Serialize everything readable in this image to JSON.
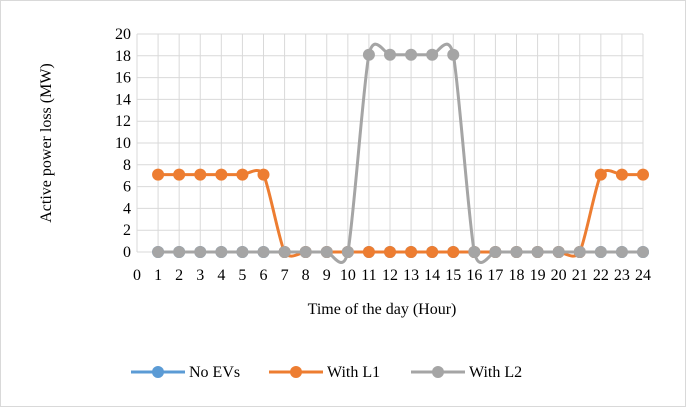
{
  "chart_data": {
    "type": "line",
    "title": "",
    "xlabel": "Time of the day (Hour)",
    "ylabel": "Active power loss (MW)",
    "x_ticks": [
      "0",
      "1",
      "2",
      "3",
      "4",
      "5",
      "6",
      "7",
      "8",
      "9",
      "10",
      "11",
      "12",
      "13",
      "14",
      "15",
      "16",
      "17",
      "18",
      "19",
      "20",
      "21",
      "22",
      "23",
      "24"
    ],
    "x": [
      1,
      2,
      3,
      4,
      5,
      6,
      7,
      8,
      9,
      10,
      11,
      12,
      13,
      14,
      15,
      16,
      17,
      18,
      19,
      20,
      21,
      22,
      23,
      24
    ],
    "xlim": [
      0,
      24
    ],
    "ylim": [
      0,
      20
    ],
    "y_ticks": [
      "0",
      "2",
      "4",
      "6",
      "8",
      "10",
      "12",
      "14",
      "16",
      "18",
      "20"
    ],
    "y_tick_values": [
      0,
      2,
      4,
      6,
      8,
      10,
      12,
      14,
      16,
      18,
      20
    ],
    "grid": true,
    "legend_position": "bottom",
    "series": [
      {
        "name": "No EVs",
        "color": "#5b9bd5",
        "values": [
          0,
          0,
          0,
          0,
          0,
          0,
          0,
          0,
          0,
          0,
          0,
          0,
          0,
          0,
          0,
          0,
          0,
          0,
          0,
          0,
          0,
          0,
          0,
          0
        ]
      },
      {
        "name": "With L1",
        "color": "#ed7d31",
        "values": [
          7.1,
          7.1,
          7.1,
          7.1,
          7.1,
          7.1,
          0,
          0,
          0,
          0,
          0,
          0,
          0,
          0,
          0,
          0,
          0,
          0,
          0,
          0,
          0,
          7.1,
          7.1,
          7.1
        ]
      },
      {
        "name": "With L2",
        "color": "#a5a5a5",
        "values": [
          0,
          0,
          0,
          0,
          0,
          0,
          0,
          0,
          0,
          0,
          18.1,
          18.1,
          18.1,
          18.1,
          18.1,
          0,
          0,
          0,
          0,
          0,
          0,
          0,
          0,
          0
        ]
      }
    ]
  }
}
